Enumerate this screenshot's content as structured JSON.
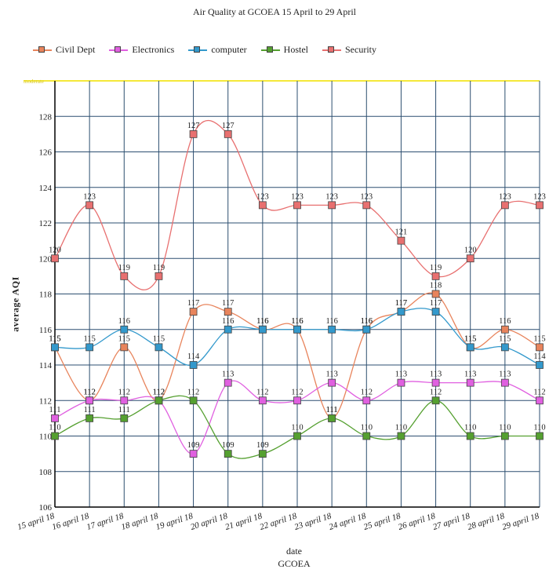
{
  "chart_data": {
    "type": "line",
    "title": "Air Quality at GCOEA 15 April to 29 April",
    "xlabel": "date",
    "x_sublabel": "GCOEA",
    "ylabel": "average AQI",
    "ylim": [
      106,
      130
    ],
    "yticks": [
      106,
      108,
      110,
      112,
      114,
      116,
      118,
      120,
      122,
      124,
      126,
      128
    ],
    "grid": true,
    "legend_position": "top",
    "categories": [
      "15 april 18",
      "16 april 18",
      "17 april 18",
      "18 april 18",
      "19 april 18",
      "20 april 18",
      "21 april 18",
      "22 april 18",
      "23 april 18",
      "24 april 18",
      "25 april 18",
      "26 april 18",
      "27 april 18",
      "28 april 18",
      "29 april 18"
    ],
    "top_band_label": "moderate",
    "top_band_value": 130,
    "series": [
      {
        "name": "Civil Dept",
        "color": "#e8845c",
        "values": [
          115,
          112,
          115,
          112,
          117,
          117,
          116,
          116,
          111,
          116,
          117,
          118,
          115,
          116,
          115
        ]
      },
      {
        "name": "Electronics",
        "color": "#e060e0",
        "values": [
          111,
          112,
          112,
          112,
          109,
          113,
          112,
          112,
          113,
          112,
          113,
          113,
          113,
          113,
          112
        ]
      },
      {
        "name": "computer",
        "color": "#3399cc",
        "values": [
          115,
          115,
          116,
          115,
          114,
          116,
          116,
          116,
          116,
          116,
          117,
          117,
          115,
          115,
          114
        ]
      },
      {
        "name": "Hostel",
        "color": "#55a030",
        "values": [
          110,
          111,
          111,
          112,
          112,
          109,
          109,
          110,
          111,
          110,
          110,
          112,
          110,
          110,
          110
        ]
      },
      {
        "name": "Security",
        "color": "#e87070",
        "values": [
          120,
          123,
          119,
          119,
          127,
          127,
          123,
          123,
          123,
          123,
          121,
          119,
          120,
          123,
          123
        ]
      }
    ]
  }
}
